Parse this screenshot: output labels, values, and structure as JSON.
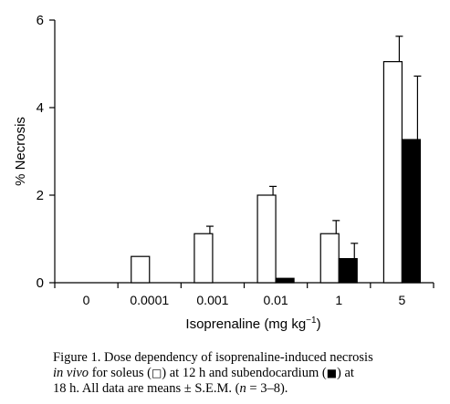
{
  "chart_data": {
    "type": "bar",
    "categories": [
      "0",
      "0.0001",
      "0.001",
      "0.01",
      "1",
      "5"
    ],
    "series": [
      {
        "name": "soleus",
        "values": [
          0,
          0.6,
          1.12,
          2.0,
          1.12,
          5.05
        ],
        "errors": [
          0,
          0,
          0.17,
          0.2,
          0.3,
          0.58
        ],
        "color": "#ffffff"
      },
      {
        "name": "subendocardium",
        "values": [
          0,
          0,
          0,
          0.1,
          0.55,
          3.27
        ],
        "errors": [
          0,
          0,
          0,
          0,
          0.35,
          1.45
        ],
        "color": "#000000"
      }
    ],
    "ylabel": "% Necrosis",
    "xlabel": "Isoprenaline (mg kg",
    "xlabel_sup": "−1",
    "xlabel_end": ")",
    "ylim": [
      0,
      6
    ],
    "yticks": [
      "0",
      "2",
      "4",
      "6"
    ],
    "grid": false
  },
  "caption": {
    "line1": "Figure 1. Dose dependency of isoprenaline-induced necrosis",
    "line2_italic": "in vivo",
    "line2_a": " for soleus (",
    "open_square": "□",
    "line2_b": ") at 12 h and subendocardium (",
    "filled_square": "■",
    "line2_c": ") at",
    "line3_a": "18 h. All data are means ± ",
    "sem": "S.E.M.",
    "line3_b": " (",
    "n_var": "n",
    "line3_c": " = 3–8)."
  }
}
